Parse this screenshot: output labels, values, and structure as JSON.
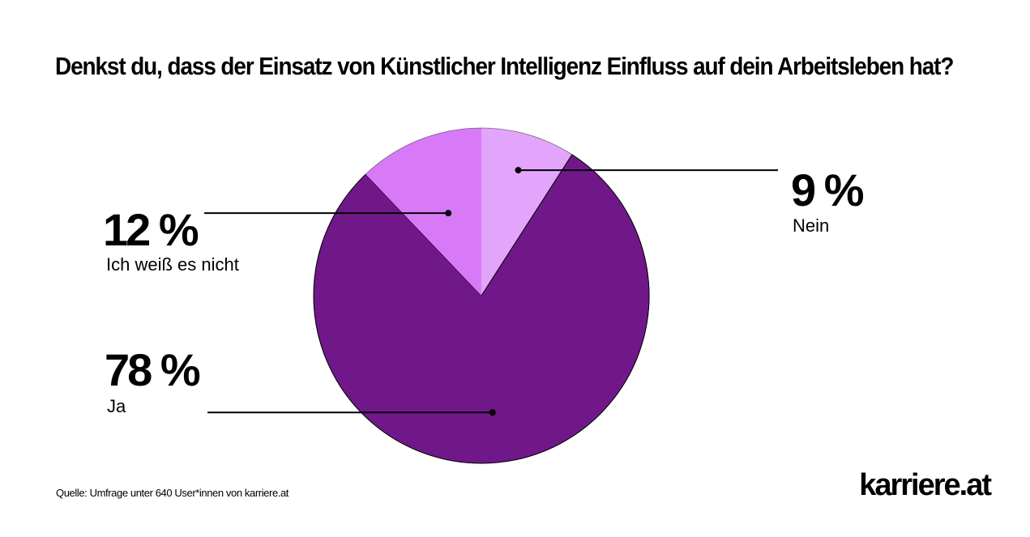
{
  "chart_data": {
    "type": "pie",
    "title": "Denkst du, dass der Einsatz von Künstlicher Intelligenz Einfluss auf dein Arbeitsleben hat?",
    "slices": [
      {
        "label": "Nein",
        "value": 9,
        "value_label": "9 %",
        "color": "#e3a4fb"
      },
      {
        "label": "Ja",
        "value": 78,
        "value_label": "78 %",
        "color": "#701889"
      },
      {
        "label": "Ich weiß es nicht",
        "value": 12,
        "value_label": "12 %",
        "color": "#d87af8"
      }
    ],
    "start_angle": "12 o'clock",
    "direction": "clockwise",
    "legend": "none"
  },
  "source": "Quelle: Umfrage unter 640 User*innen von karriere.at",
  "logo_text": "karriere.at"
}
